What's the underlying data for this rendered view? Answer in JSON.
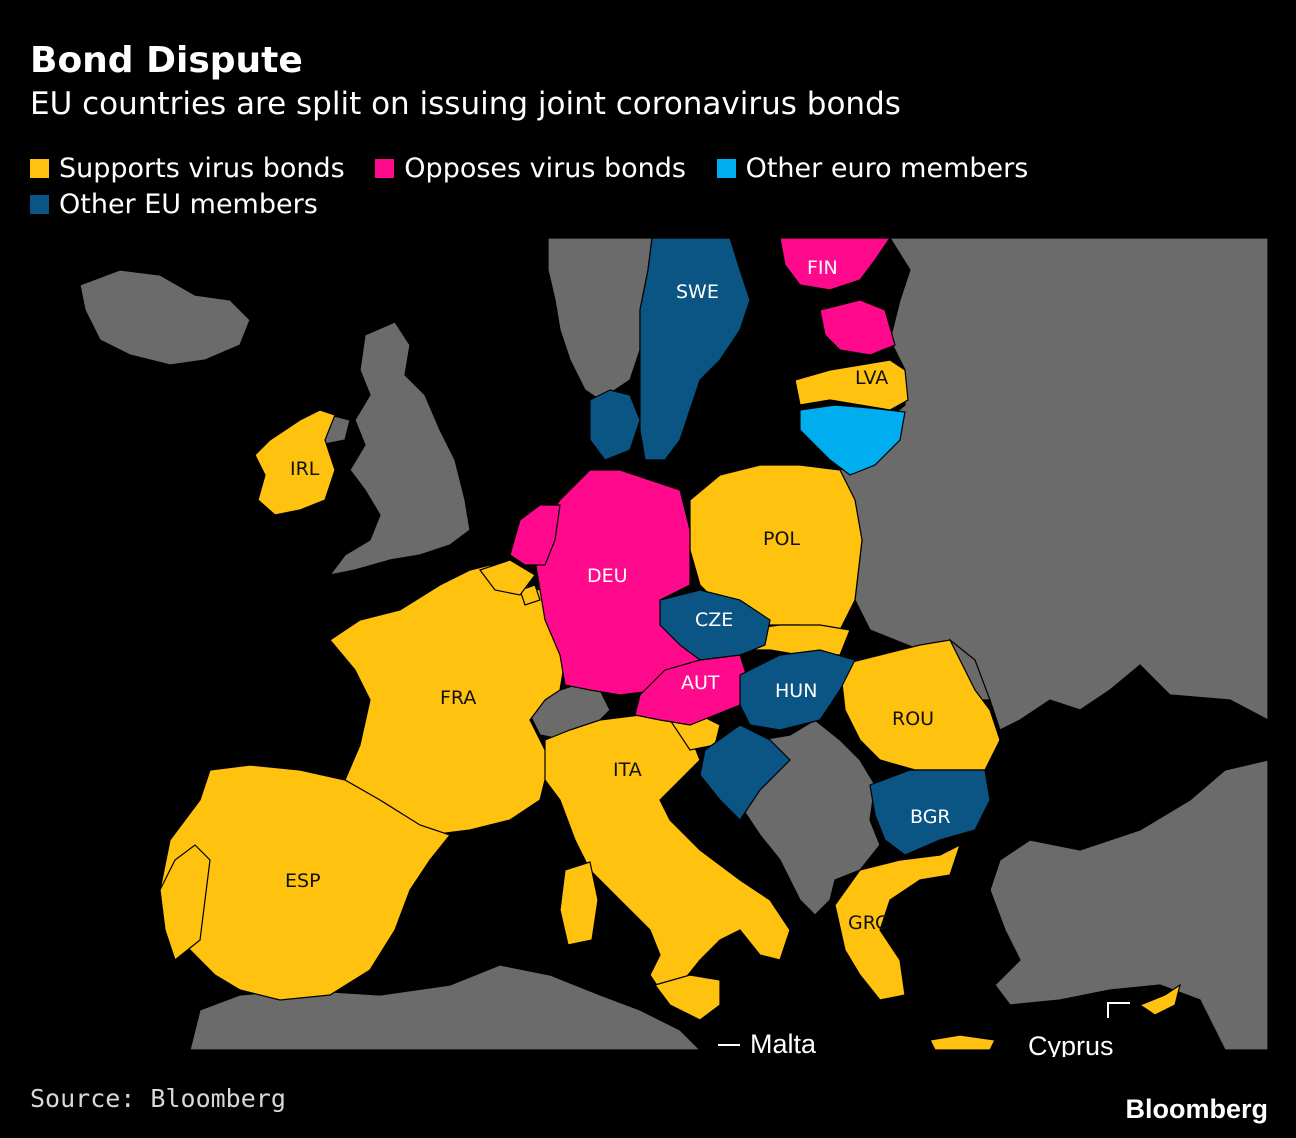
{
  "title": "Bond Dispute",
  "subtitle": "EU countries are split on issuing joint coronavirus bonds",
  "legend": [
    {
      "label": "Supports virus bonds",
      "color": "#FFC20E"
    },
    {
      "label": "Opposes virus bonds",
      "color": "#FF0A8C"
    },
    {
      "label": "Other euro members",
      "color": "#00AEEF"
    },
    {
      "label": "Other EU members",
      "color": "#0B5585"
    }
  ],
  "colors": {
    "supports": "#FFC20E",
    "opposes": "#FF0A8C",
    "other_euro": "#00AEEF",
    "other_eu": "#0B5585",
    "non_eu": "#6B6B6B",
    "sea": "#000000"
  },
  "countries": {
    "supports": [
      "IRL",
      "POL",
      "FRA",
      "ESP",
      "ITA",
      "ROU",
      "GRC",
      "LVA"
    ],
    "opposes": [
      "FIN",
      "DEU",
      "AUT"
    ],
    "other_euro": [],
    "other_eu": [
      "SWE",
      "CZE",
      "HUN",
      "BGR"
    ]
  },
  "labels": {
    "fin": "FIN",
    "swe": "SWE",
    "lva": "LVA",
    "irl": "IRL",
    "pol": "POL",
    "deu": "DEU",
    "cze": "CZE",
    "fra": "FRA",
    "aut": "AUT",
    "hun": "HUN",
    "rou": "ROU",
    "ita": "ITA",
    "bgr": "BGR",
    "esp": "ESP",
    "grc": "GRC"
  },
  "callouts": {
    "malta": "Malta",
    "cyprus": "Cyprus"
  },
  "source": "Source: Bloomberg",
  "brand": "Bloomberg"
}
